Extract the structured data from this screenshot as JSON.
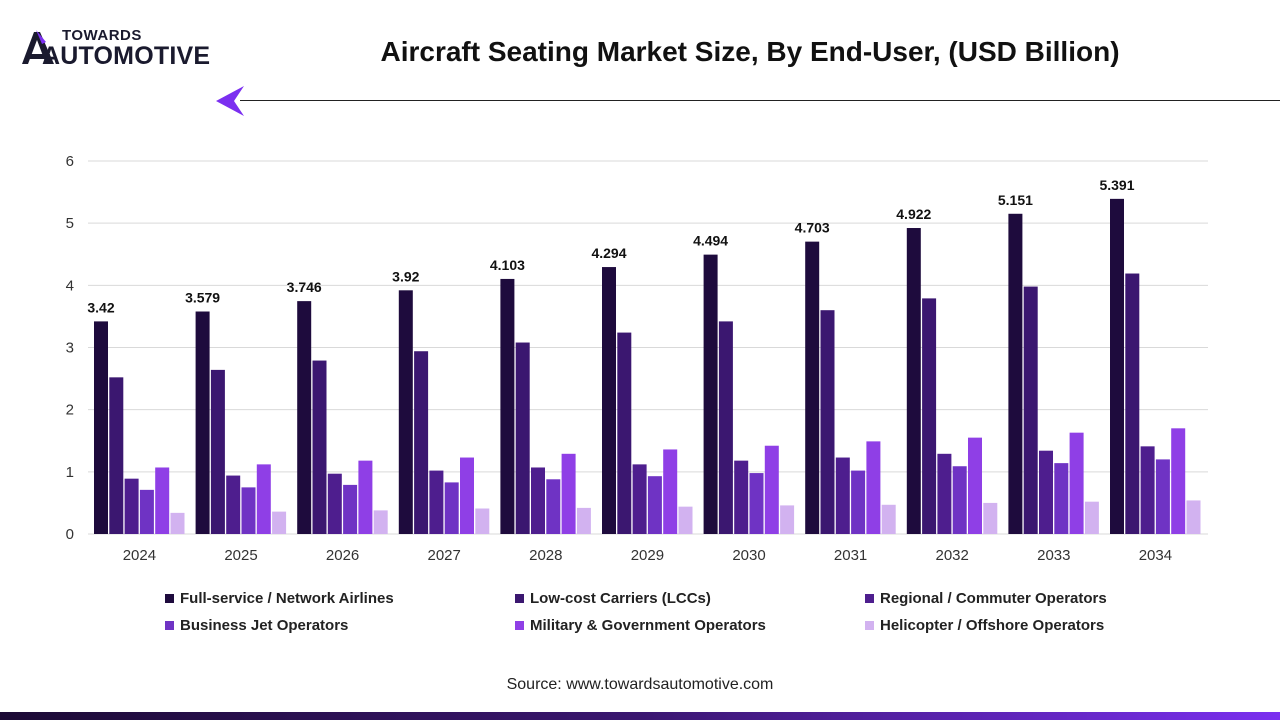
{
  "brand": {
    "line1": "TOWARDS",
    "line2": "AUTOMOTIVE"
  },
  "header": {
    "title": "Aircraft Seating Market Size, By End-User, (USD Billion)"
  },
  "source": "Source: www.towardsautomotive.com",
  "colors": {
    "brand_dark": "#1a1a2e",
    "accent": "#7b2ff0"
  },
  "chart_data": {
    "type": "bar",
    "title": "Aircraft Seating Market Size, By End-User, (USD Billion)",
    "xlabel": "",
    "ylabel": "",
    "ylim": [
      0,
      6
    ],
    "yticks": [
      0,
      1,
      2,
      3,
      4,
      5,
      6
    ],
    "grid": true,
    "legend_position": "bottom",
    "categories": [
      "2024",
      "2025",
      "2026",
      "2027",
      "2028",
      "2029",
      "2030",
      "2031",
      "2032",
      "2033",
      "2034"
    ],
    "series": [
      {
        "name": "Full-service / Network Airlines",
        "color": "#1e0b3d",
        "values": [
          3.42,
          3.579,
          3.746,
          3.92,
          4.103,
          4.294,
          4.494,
          4.703,
          4.922,
          5.151,
          5.391
        ],
        "labels": [
          "3.42",
          "3.579",
          "3.746",
          "3.92",
          "4.103",
          "4.294",
          "4.494",
          "4.703",
          "4.922",
          "5.151",
          "5.391"
        ]
      },
      {
        "name": "Low-cost Carriers (LCCs)",
        "color": "#3b1770",
        "values": [
          2.52,
          2.64,
          2.79,
          2.94,
          3.08,
          3.24,
          3.42,
          3.6,
          3.79,
          3.98,
          4.19
        ]
      },
      {
        "name": "Regional / Commuter Operators",
        "color": "#4e1e8e",
        "values": [
          0.89,
          0.94,
          0.97,
          1.02,
          1.07,
          1.12,
          1.18,
          1.23,
          1.29,
          1.34,
          1.41
        ]
      },
      {
        "name": "Business Jet Operators",
        "color": "#6f33c4",
        "values": [
          0.71,
          0.75,
          0.79,
          0.83,
          0.88,
          0.93,
          0.98,
          1.02,
          1.09,
          1.14,
          1.2
        ]
      },
      {
        "name": "Military & Government Operators",
        "color": "#8f3fe6",
        "values": [
          1.07,
          1.12,
          1.18,
          1.23,
          1.29,
          1.36,
          1.42,
          1.49,
          1.55,
          1.63,
          1.7
        ]
      },
      {
        "name": "Helicopter / Offshore Operators",
        "color": "#d2b2f0",
        "values": [
          0.34,
          0.36,
          0.38,
          0.41,
          0.42,
          0.44,
          0.46,
          0.47,
          0.5,
          0.52,
          0.54
        ]
      }
    ]
  }
}
